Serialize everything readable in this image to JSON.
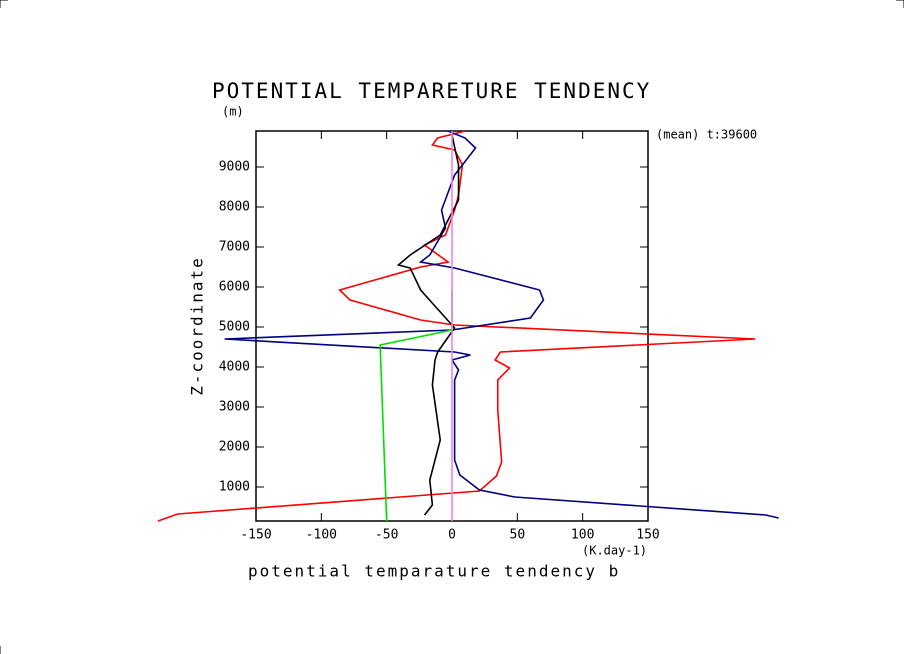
{
  "chart_data": {
    "type": "line",
    "title": "POTENTIAL TEMPARETURE TENDENCY",
    "y_unit": "(m)",
    "annotation": "(mean) t:39600",
    "ylabel": "Z-coordinate",
    "x_unit": "(K.day-1)",
    "xlabel": "potential temparature tendency b",
    "xlim": [
      -150,
      150
    ],
    "xticks": [
      -150,
      -100,
      -50,
      0,
      50,
      100,
      150
    ],
    "ylim": [
      150,
      9900
    ],
    "yticks": [
      1000,
      2000,
      3000,
      4000,
      5000,
      6000,
      7000,
      8000,
      9000
    ],
    "series": [
      {
        "color": "#ff0000",
        "y": [
          150,
          325,
          900,
          1275,
          1625,
          2925,
          3675,
          3975,
          4175,
          4375,
          4700,
          5050,
          5175,
          5675,
          5925,
          6500,
          6625,
          7050,
          7300,
          7925,
          8300,
          9050,
          9425,
          9550,
          9725,
          9900
        ],
        "values": [
          -225,
          -210,
          21,
          34,
          38,
          35,
          35,
          44,
          33,
          37,
          232,
          2,
          -24,
          -78,
          -86,
          -24,
          -3,
          -21,
          -5,
          2,
          5,
          8,
          2,
          -15,
          -11,
          10
        ]
      },
      {
        "color": "#000080",
        "y": [
          225,
          300,
          750,
          925,
          1300,
          1675,
          3675,
          3925,
          4175,
          4300,
          4375,
          4700,
          4925,
          5225,
          5675,
          5925,
          6475,
          6625,
          6800,
          7475,
          7925,
          8800,
          9475,
          9725,
          9900
        ],
        "values": [
          250,
          240,
          48,
          21,
          6,
          2,
          2,
          5,
          0,
          14,
          2,
          -174,
          0,
          60,
          70,
          67,
          2,
          -24,
          -17,
          -5,
          -8,
          2,
          18,
          10,
          -3
        ]
      },
      {
        "color": "#000000",
        "y": [
          300,
          550,
          1175,
          2175,
          3550,
          4175,
          4375,
          4975,
          5925,
          6475,
          6550,
          6800,
          7300,
          8175,
          9050,
          9800
        ],
        "values": [
          -21,
          -15,
          -17,
          -9,
          -15,
          -13,
          -11,
          2,
          -24,
          -32,
          -41,
          -32,
          -9,
          5,
          5,
          0
        ]
      },
      {
        "color": "#00e000",
        "y": [
          150,
          4550,
          4925,
          5925
        ],
        "values": [
          -50,
          -55,
          0,
          0
        ]
      },
      {
        "color": "#ee82ee",
        "y": [
          150,
          9900
        ],
        "values": [
          0,
          0
        ]
      }
    ]
  }
}
